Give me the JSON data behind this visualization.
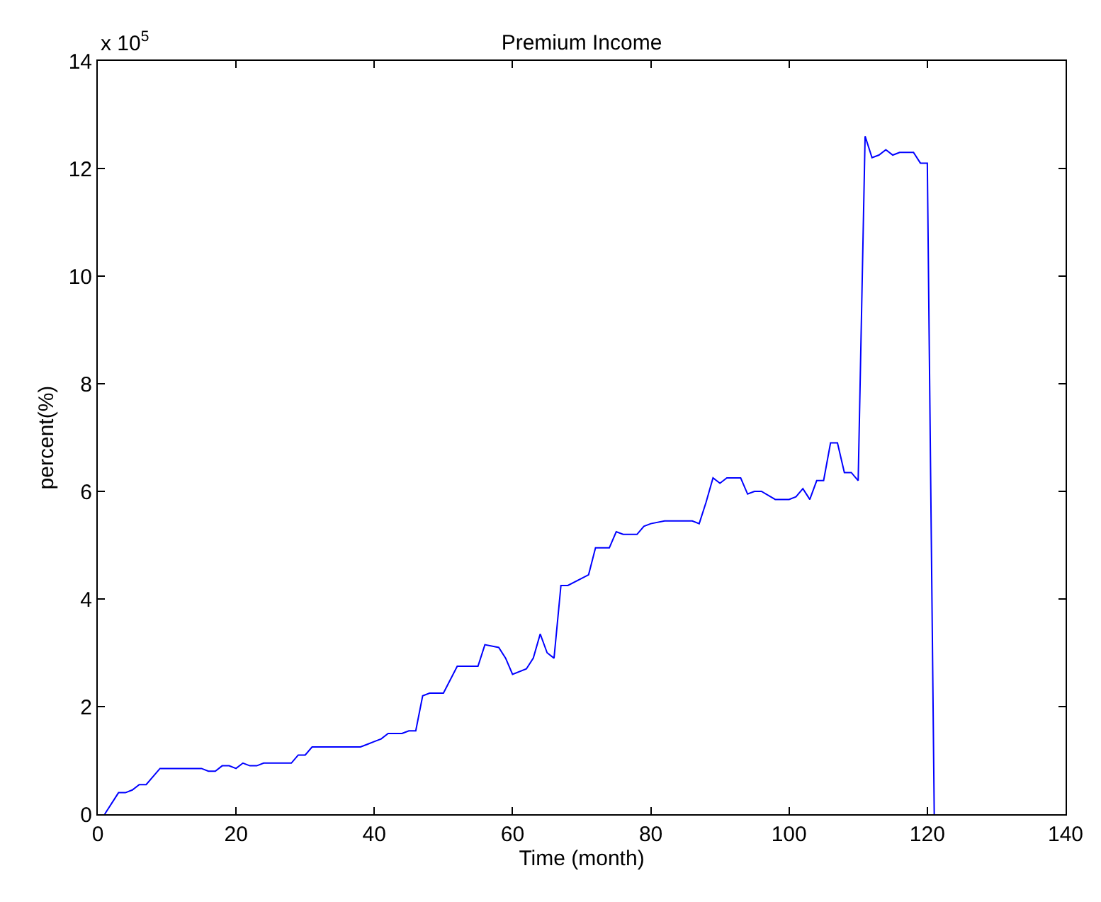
{
  "chart_data": {
    "type": "line",
    "title": "Premium Income",
    "xlabel": "Time (month)",
    "ylabel": "percent(%)",
    "annotations": [
      "x 10$^{5}$"
    ],
    "xlim": [
      0,
      140
    ],
    "xticks": [
      0,
      20,
      40,
      60,
      80,
      100,
      120,
      140
    ],
    "ylim": [
      0,
      14
    ],
    "yticks": [
      0,
      2,
      4,
      6,
      8,
      10,
      12,
      14
    ],
    "marker": "none",
    "line_style": "solid",
    "series": [
      {
        "color": "#0000ff",
        "x": [
          1,
          3,
          4,
          5,
          6,
          7,
          9,
          15,
          16,
          17,
          18,
          19,
          20,
          21,
          22,
          23,
          24,
          28,
          29,
          30,
          31,
          38,
          39,
          40,
          41,
          42,
          44,
          45,
          46,
          47,
          48,
          50,
          52,
          55,
          56,
          58,
          59,
          60,
          62,
          63,
          64,
          65,
          66,
          67,
          68,
          71,
          72,
          74,
          75,
          76,
          78,
          79,
          80,
          82,
          86,
          87,
          88,
          89,
          90,
          91,
          93,
          94,
          95,
          96,
          98,
          100,
          101,
          102,
          103,
          104,
          105,
          106,
          107,
          108,
          109,
          110,
          111,
          112,
          113,
          114,
          115,
          116,
          118,
          119,
          120,
          121
        ],
        "values": [
          0,
          0.4,
          0.4,
          0.45,
          0.55,
          0.55,
          0.85,
          0.85,
          0.8,
          0.8,
          0.9,
          0.9,
          0.85,
          0.95,
          0.9,
          0.9,
          0.95,
          0.95,
          1.1,
          1.1,
          1.25,
          1.25,
          1.3,
          1.35,
          1.4,
          1.5,
          1.5,
          1.55,
          1.55,
          2.2,
          2.25,
          2.25,
          2.75,
          2.75,
          3.15,
          3.1,
          2.9,
          2.6,
          2.7,
          2.9,
          3.35,
          3.0,
          2.9,
          4.25,
          4.25,
          4.45,
          4.95,
          4.95,
          5.25,
          5.2,
          5.2,
          5.35,
          5.4,
          5.45,
          5.45,
          5.4,
          5.8,
          6.25,
          6.15,
          6.25,
          6.25,
          5.95,
          6.0,
          6.0,
          5.85,
          5.85,
          5.9,
          6.05,
          5.85,
          6.2,
          6.2,
          6.9,
          6.9,
          6.35,
          6.35,
          6.2,
          12.6,
          12.2,
          12.25,
          12.35,
          12.25,
          12.3,
          12.3,
          12.1,
          12.1,
          0
        ]
      }
    ]
  }
}
